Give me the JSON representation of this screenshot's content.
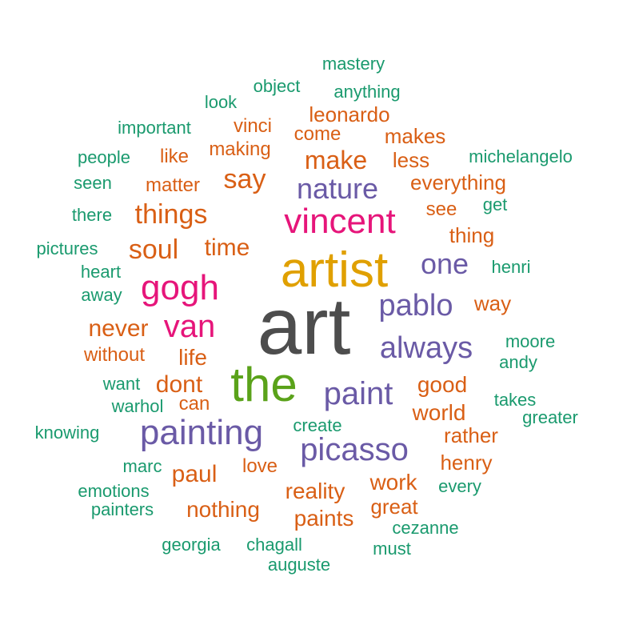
{
  "colors": {
    "dark_gray": "#4d4d4d",
    "gold": "#e0a000",
    "magenta": "#e6157a",
    "green": "#5aa21a",
    "purple": "#6a5aa6",
    "orange": "#d95f15",
    "teal": "#1a9a6e"
  },
  "words": [
    {
      "text": "art",
      "color": "dark_gray"
    },
    {
      "text": "artist",
      "color": "gold"
    },
    {
      "text": "vincent",
      "color": "magenta"
    },
    {
      "text": "gogh",
      "color": "magenta"
    },
    {
      "text": "van",
      "color": "magenta"
    },
    {
      "text": "the",
      "color": "green"
    },
    {
      "text": "painting",
      "color": "purple"
    },
    {
      "text": "picasso",
      "color": "purple"
    },
    {
      "text": "paint",
      "color": "purple"
    },
    {
      "text": "always",
      "color": "purple"
    },
    {
      "text": "pablo",
      "color": "purple"
    },
    {
      "text": "nature",
      "color": "purple"
    },
    {
      "text": "one",
      "color": "purple"
    },
    {
      "text": "things",
      "color": "orange"
    },
    {
      "text": "soul",
      "color": "orange"
    },
    {
      "text": "say",
      "color": "orange"
    },
    {
      "text": "make",
      "color": "orange"
    },
    {
      "text": "time",
      "color": "orange"
    },
    {
      "text": "never",
      "color": "orange"
    },
    {
      "text": "life",
      "color": "orange"
    },
    {
      "text": "dont",
      "color": "orange"
    },
    {
      "text": "paul",
      "color": "orange"
    },
    {
      "text": "nothing",
      "color": "orange"
    },
    {
      "text": "reality",
      "color": "orange"
    },
    {
      "text": "work",
      "color": "orange"
    },
    {
      "text": "paints",
      "color": "orange"
    },
    {
      "text": "great",
      "color": "orange"
    },
    {
      "text": "world",
      "color": "orange"
    },
    {
      "text": "good",
      "color": "orange"
    },
    {
      "text": "rather",
      "color": "orange"
    },
    {
      "text": "henry",
      "color": "orange"
    },
    {
      "text": "way",
      "color": "orange"
    },
    {
      "text": "thing",
      "color": "orange"
    },
    {
      "text": "see",
      "color": "orange"
    },
    {
      "text": "everything",
      "color": "orange"
    },
    {
      "text": "less",
      "color": "orange"
    },
    {
      "text": "makes",
      "color": "orange"
    },
    {
      "text": "leonardo",
      "color": "orange"
    },
    {
      "text": "come",
      "color": "orange"
    },
    {
      "text": "vinci",
      "color": "orange"
    },
    {
      "text": "making",
      "color": "orange"
    },
    {
      "text": "like",
      "color": "orange"
    },
    {
      "text": "matter",
      "color": "orange"
    },
    {
      "text": "without",
      "color": "orange"
    },
    {
      "text": "can",
      "color": "orange"
    },
    {
      "text": "love",
      "color": "orange"
    },
    {
      "text": "mastery",
      "color": "teal"
    },
    {
      "text": "object",
      "color": "teal"
    },
    {
      "text": "anything",
      "color": "teal"
    },
    {
      "text": "look",
      "color": "teal"
    },
    {
      "text": "important",
      "color": "teal"
    },
    {
      "text": "people",
      "color": "teal"
    },
    {
      "text": "michelangelo",
      "color": "teal"
    },
    {
      "text": "seen",
      "color": "teal"
    },
    {
      "text": "there",
      "color": "teal"
    },
    {
      "text": "get",
      "color": "teal"
    },
    {
      "text": "pictures",
      "color": "teal"
    },
    {
      "text": "heart",
      "color": "teal"
    },
    {
      "text": "henri",
      "color": "teal"
    },
    {
      "text": "away",
      "color": "teal"
    },
    {
      "text": "moore",
      "color": "teal"
    },
    {
      "text": "andy",
      "color": "teal"
    },
    {
      "text": "want",
      "color": "teal"
    },
    {
      "text": "warhol",
      "color": "teal"
    },
    {
      "text": "takes",
      "color": "teal"
    },
    {
      "text": "greater",
      "color": "teal"
    },
    {
      "text": "knowing",
      "color": "teal"
    },
    {
      "text": "create",
      "color": "teal"
    },
    {
      "text": "marc",
      "color": "teal"
    },
    {
      "text": "every",
      "color": "teal"
    },
    {
      "text": "emotions",
      "color": "teal"
    },
    {
      "text": "painters",
      "color": "teal"
    },
    {
      "text": "cezanne",
      "color": "teal"
    },
    {
      "text": "georgia",
      "color": "teal"
    },
    {
      "text": "chagall",
      "color": "teal"
    },
    {
      "text": "must",
      "color": "teal"
    },
    {
      "text": "auguste",
      "color": "teal"
    }
  ]
}
